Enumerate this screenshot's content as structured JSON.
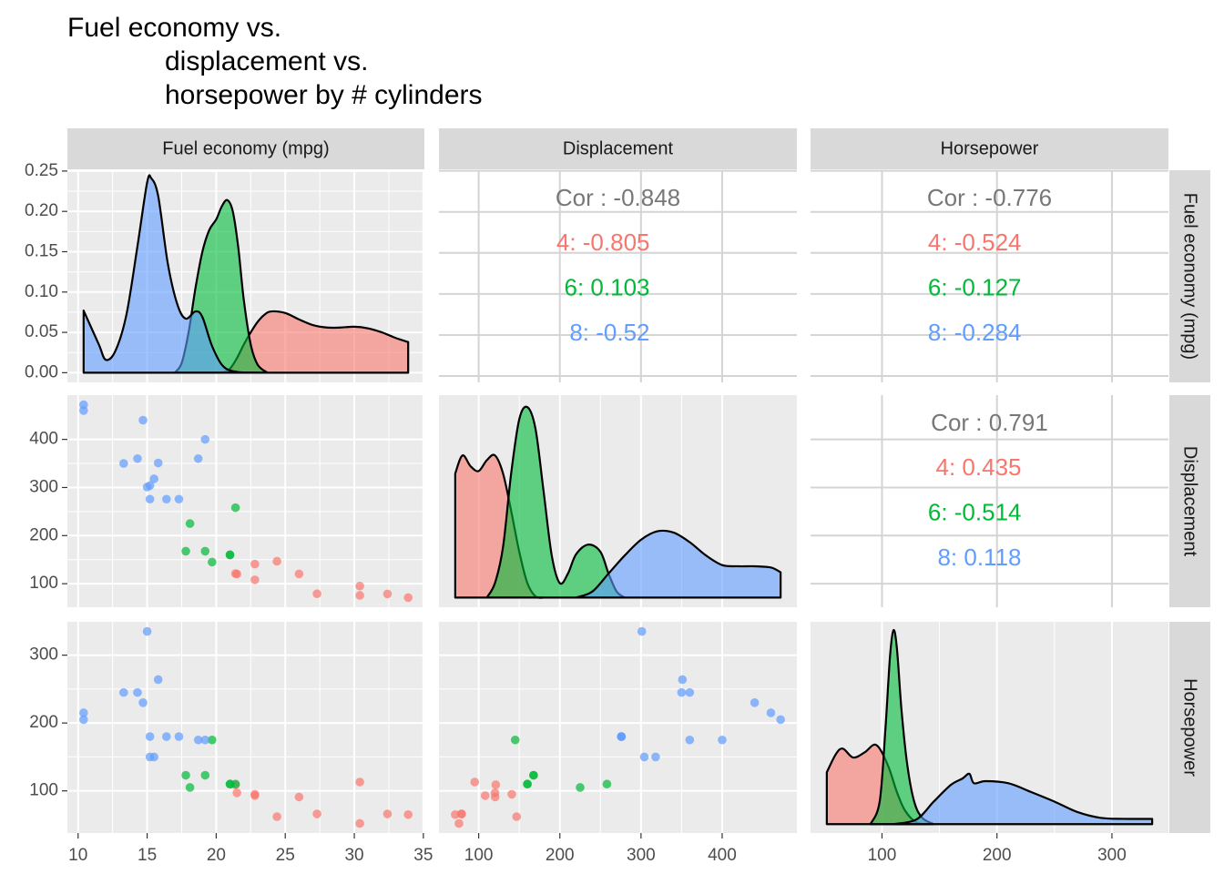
{
  "title": [
    "Fuel economy vs.",
    "displacement vs.",
    "horsepower by # cylinders"
  ],
  "column_labels": [
    "Fuel economy (mpg)",
    "Displacement",
    "Horsepower"
  ],
  "row_labels": [
    "Fuel economy (mpg)",
    "Displacement",
    "Horsepower"
  ],
  "chart_data": [
    {
      "type": "density",
      "xlim": [
        9.225,
        35.075
      ],
      "xticks": [
        10,
        15,
        20,
        25,
        30,
        35
      ],
      "ylim": [
        -0.012,
        0.251
      ],
      "yticks": [
        {
          "value": 0,
          "label": "0.00"
        },
        {
          "value": 0.05,
          "label": "0.05"
        },
        {
          "value": 0.1,
          "label": "0.10"
        },
        {
          "value": 0.15,
          "label": "0.15"
        },
        {
          "value": 0.2,
          "label": "0.20"
        },
        {
          "value": 0.25,
          "label": "0.25"
        }
      ],
      "series": [
        {
          "color": "#F8766D",
          "x": [
            20.5,
            21.0,
            21.5,
            22.0,
            22.5,
            23.0,
            23.5,
            24.0,
            25.0,
            26.0,
            27.0,
            28.0,
            29.0,
            30.0,
            31.0,
            32.0,
            33.0,
            33.9
          ],
          "values": [
            0,
            0.005,
            0.018,
            0.035,
            0.05,
            0.063,
            0.072,
            0.076,
            0.074,
            0.066,
            0.059,
            0.056,
            0.056,
            0.057,
            0.055,
            0.05,
            0.043,
            0.038
          ]
        },
        {
          "color": "#00BA38",
          "x": [
            17.0,
            17.5,
            18.0,
            18.5,
            19.0,
            19.5,
            20.0,
            20.4,
            20.8,
            21.2,
            21.6,
            22.0,
            22.5,
            23.0,
            23.7
          ],
          "values": [
            0,
            0.012,
            0.05,
            0.105,
            0.15,
            0.177,
            0.19,
            0.206,
            0.214,
            0.2,
            0.155,
            0.09,
            0.035,
            0.01,
            0
          ]
        },
        {
          "color": "#619CFF",
          "x": [
            10.4,
            11.5,
            12.0,
            12.7,
            13.5,
            14.3,
            15.0,
            15.3,
            15.8,
            16.5,
            17.2,
            17.8,
            18.5,
            19.0,
            19.7,
            20.5,
            21.5,
            23.0
          ],
          "values": [
            0.077,
            0.035,
            0.016,
            0.027,
            0.072,
            0.157,
            0.236,
            0.241,
            0.219,
            0.135,
            0.084,
            0.067,
            0.076,
            0.069,
            0.033,
            0.008,
            0.001,
            0
          ]
        }
      ]
    },
    {
      "type": "text",
      "xlim": [
        51.055,
        492.045
      ],
      "xticks": [
        100,
        200,
        300,
        400
      ],
      "ylim": [
        9.225,
        35.075
      ],
      "yticks": [
        10,
        15,
        20,
        25,
        30,
        35
      ],
      "label": "Cor : -0.848",
      "color": "#777777",
      "groups": [
        {
          "label": "4: -0.805",
          "color": "#F8766D"
        },
        {
          "label": "6: 0.103",
          "color": "#00BA38"
        },
        {
          "label": "8: -0.52",
          "color": "#619CFF"
        }
      ]
    },
    {
      "type": "text",
      "xlim": [
        37.85,
        349.15
      ],
      "xticks": [
        100,
        200,
        300
      ],
      "ylim": [
        9.225,
        35.075
      ],
      "yticks": [
        10,
        15,
        20,
        25,
        30,
        35
      ],
      "label": "Cor : -0.776",
      "color": "#777777",
      "groups": [
        {
          "label": "4: -0.524",
          "color": "#F8766D"
        },
        {
          "label": "6: -0.127",
          "color": "#00BA38"
        },
        {
          "label": "8: -0.284",
          "color": "#619CFF"
        }
      ]
    },
    {
      "type": "scatter",
      "xlim": [
        9.225,
        35.075
      ],
      "xticks": [
        10,
        15,
        20,
        25,
        30,
        35
      ],
      "ylim": [
        51.055,
        492.045
      ],
      "yticks": [
        100,
        200,
        300,
        400
      ],
      "series": [
        {
          "color": "#F8766D",
          "x": [
            22.8,
            24.4,
            22.8,
            32.4,
            30.4,
            33.9,
            21.5,
            27.3,
            26.0,
            30.4,
            21.4
          ],
          "values": [
            108,
            146.7,
            140.8,
            78.7,
            75.7,
            71.1,
            120.1,
            79,
            120.3,
            95.1,
            121
          ]
        },
        {
          "color": "#00BA38",
          "x": [
            21,
            21,
            21.4,
            18.1,
            19.2,
            17.8,
            19.7
          ],
          "values": [
            160,
            160,
            258,
            225,
            167.6,
            167.6,
            145
          ]
        },
        {
          "color": "#619CFF",
          "x": [
            18.7,
            14.3,
            16.4,
            17.3,
            15.2,
            10.4,
            10.4,
            14.7,
            15.5,
            15.2,
            13.3,
            19.2,
            15.8,
            15.0
          ],
          "values": [
            360,
            360,
            275.8,
            275.8,
            275.8,
            472,
            460,
            440,
            318,
            304,
            350,
            400,
            351,
            301
          ]
        }
      ]
    },
    {
      "type": "density",
      "xlim": [
        51.055,
        492.045
      ],
      "xticks": [
        100,
        200,
        300,
        400
      ],
      "ylim": [
        -0.0008,
        0.0168
      ],
      "series": [
        {
          "color": "#F8766D",
          "x": [
            71.1,
            80,
            90,
            100,
            110,
            120,
            130,
            140,
            150,
            160,
            170,
            180
          ],
          "values": [
            0.0103,
            0.0118,
            0.0109,
            0.0105,
            0.0114,
            0.0118,
            0.0103,
            0.0072,
            0.0038,
            0.0012,
            0.0001,
            0
          ]
        },
        {
          "color": "#00BA38",
          "x": [
            110,
            120,
            130,
            140,
            150,
            160,
            170,
            180,
            190,
            200,
            210,
            220,
            235,
            250,
            260,
            270,
            280
          ],
          "values": [
            0,
            0.0012,
            0.0042,
            0.0103,
            0.0148,
            0.0158,
            0.014,
            0.0088,
            0.0035,
            0.0012,
            0.002,
            0.0036,
            0.0044,
            0.0038,
            0.002,
            0.0005,
            0
          ]
        },
        {
          "color": "#619CFF",
          "x": [
            220,
            240,
            260,
            280,
            300,
            320,
            340,
            360,
            380,
            400,
            420,
            440,
            460,
            472
          ],
          "values": [
            0,
            0.0005,
            0.002,
            0.0035,
            0.0048,
            0.0055,
            0.0054,
            0.0046,
            0.0035,
            0.0027,
            0.0026,
            0.0026,
            0.0025,
            0.0021
          ]
        }
      ]
    },
    {
      "type": "text",
      "xlim": [
        37.85,
        349.15
      ],
      "xticks": [
        100,
        200,
        300
      ],
      "ylim": [
        51.055,
        492.045
      ],
      "yticks": [
        100,
        200,
        300,
        400
      ],
      "label": "Cor : 0.791",
      "color": "#777777",
      "groups": [
        {
          "label": "4: 0.435",
          "color": "#F8766D"
        },
        {
          "label": "6: -0.514",
          "color": "#00BA38"
        },
        {
          "label": "8: 0.118",
          "color": "#619CFF"
        }
      ]
    },
    {
      "type": "scatter",
      "xlim": [
        9.225,
        35.075
      ],
      "xticks": [
        10,
        15,
        20,
        25,
        30,
        35
      ],
      "ylim": [
        37.85,
        349.15
      ],
      "yticks": [
        100,
        200,
        300
      ],
      "series": [
        {
          "color": "#F8766D",
          "x": [
            22.8,
            24.4,
            22.8,
            32.4,
            30.4,
            33.9,
            21.5,
            27.3,
            26.0,
            30.4,
            21.4
          ],
          "values": [
            93,
            62,
            95,
            66,
            52,
            65,
            97,
            66,
            91,
            113,
            109
          ]
        },
        {
          "color": "#00BA38",
          "x": [
            21,
            21,
            21.4,
            18.1,
            19.2,
            17.8,
            19.7
          ],
          "values": [
            110,
            110,
            110,
            105,
            123,
            123,
            175
          ]
        },
        {
          "color": "#619CFF",
          "x": [
            18.7,
            14.3,
            16.4,
            17.3,
            15.2,
            10.4,
            10.4,
            14.7,
            15.5,
            15.2,
            13.3,
            19.2,
            15.8,
            15.0
          ],
          "values": [
            175,
            245,
            180,
            180,
            180,
            205,
            215,
            230,
            150,
            150,
            245,
            175,
            264,
            335
          ]
        }
      ]
    },
    {
      "type": "scatter",
      "xlim": [
        51.055,
        492.045
      ],
      "xticks": [
        100,
        200,
        300,
        400
      ],
      "ylim": [
        37.85,
        349.15
      ],
      "yticks": [
        100,
        200,
        300
      ],
      "series": [
        {
          "color": "#F8766D",
          "x": [
            108,
            146.7,
            140.8,
            78.7,
            75.7,
            71.1,
            120.1,
            79,
            120.3,
            95.1,
            121
          ],
          "values": [
            93,
            62,
            95,
            66,
            52,
            65,
            97,
            66,
            91,
            113,
            109
          ]
        },
        {
          "color": "#00BA38",
          "x": [
            160,
            160,
            258,
            225,
            167.6,
            167.6,
            145
          ],
          "values": [
            110,
            110,
            110,
            105,
            123,
            123,
            175
          ]
        },
        {
          "color": "#619CFF",
          "x": [
            360,
            360,
            275.8,
            275.8,
            275.8,
            472,
            460,
            440,
            318,
            304,
            350,
            400,
            351,
            301
          ],
          "values": [
            175,
            245,
            180,
            180,
            180,
            205,
            215,
            230,
            150,
            150,
            245,
            175,
            264,
            335
          ]
        }
      ]
    },
    {
      "type": "density",
      "xlim": [
        37.85,
        349.15
      ],
      "xticks": [
        100,
        200,
        300
      ],
      "ylim": [
        -0.0017,
        0.0386
      ],
      "series": [
        {
          "color": "#F8766D",
          "x": [
            52,
            60,
            66,
            75,
            85,
            95,
            105,
            113,
            120,
            130,
            140
          ],
          "values": [
            0.0099,
            0.0134,
            0.0144,
            0.0127,
            0.0137,
            0.0151,
            0.0113,
            0.0061,
            0.0026,
            0.0003,
            0
          ]
        },
        {
          "color": "#00BA38",
          "x": [
            90,
            98,
            103,
            107,
            110,
            113,
            117,
            122,
            128,
            135,
            145
          ],
          "values": [
            0,
            0.0043,
            0.0182,
            0.0321,
            0.037,
            0.0335,
            0.0217,
            0.0113,
            0.0043,
            0.0012,
            0
          ]
        },
        {
          "color": "#619CFF",
          "x": [
            110,
            130,
            145,
            160,
            170,
            176,
            180,
            190,
            210,
            230,
            250,
            270,
            290,
            310,
            335
          ],
          "values": [
            0,
            0.0009,
            0.0043,
            0.0075,
            0.0087,
            0.0096,
            0.0078,
            0.0082,
            0.0078,
            0.0061,
            0.0043,
            0.0023,
            0.0012,
            0.001,
            0.001
          ]
        }
      ]
    }
  ]
}
